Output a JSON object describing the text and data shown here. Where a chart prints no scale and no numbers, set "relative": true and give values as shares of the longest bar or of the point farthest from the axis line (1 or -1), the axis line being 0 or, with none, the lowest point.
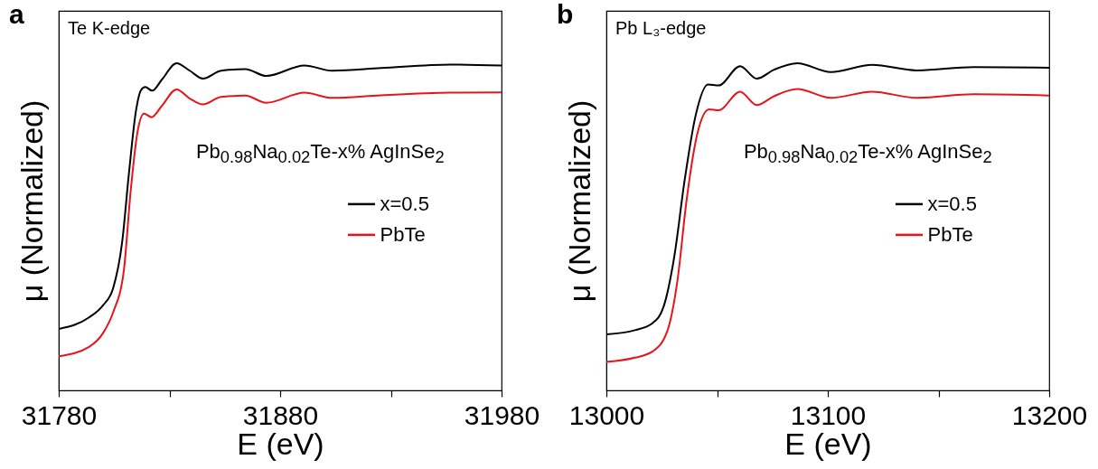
{
  "chart_data": [
    {
      "type": "line",
      "title": "a",
      "annotations": [
        "Te K-edge"
      ],
      "xlabel": "E (eV)",
      "ylabel": "μ (Normalized)",
      "legend_title": "Pb$_{0.98}$Na$_{0.02}$Te-x% AgInSe$_{2}$",
      "legend": "right",
      "relative": true,
      "tick_labels": "x",
      "xlim": [
        31780,
        31980
      ],
      "xticks": [
        31780,
        {
          "value": 31830,
          "label": null
        },
        31880,
        {
          "value": 31930,
          "label": null
        },
        31980
      ],
      "series": [
        {
          "name": "x=0.5",
          "color": "#000000",
          "x": [
            31780,
            31793.7,
            31800,
            31804.6,
            31808.6,
            31811.7,
            31814.9,
            31817.2,
            31819.1,
            31822.2,
            31826.6,
            31833.2,
            31839.2,
            31845.1,
            31853.3,
            31864.3,
            31873.7,
            31891,
            31903.5,
            31925.5,
            31956.9,
            31980
          ],
          "values": [
            0.188,
            0.223,
            0.26,
            0.313,
            0.451,
            0.663,
            0.855,
            0.918,
            0.927,
            0.916,
            0.95,
            1.0,
            0.977,
            0.953,
            0.977,
            0.982,
            0.961,
            0.993,
            0.977,
            0.985,
            0.996,
            0.993
          ]
        },
        {
          "name": "PbTe",
          "color": "#e8141b",
          "x": [
            31780,
            31793.7,
            31800,
            31804.6,
            31809.4,
            31812.5,
            31815.6,
            31818.5,
            31821.9,
            31826.6,
            31833.2,
            31839.2,
            31845.1,
            31853.3,
            31864.3,
            31873.7,
            31891,
            31903.5,
            31925.5,
            31956.9,
            31980
          ],
          "values": [
            0.104,
            0.133,
            0.175,
            0.239,
            0.366,
            0.61,
            0.791,
            0.846,
            0.835,
            0.87,
            0.92,
            0.892,
            0.874,
            0.897,
            0.901,
            0.879,
            0.91,
            0.894,
            0.902,
            0.91,
            0.911
          ]
        }
      ]
    },
    {
      "type": "line",
      "title": "b",
      "annotations": [
        "Pb L₃-edge"
      ],
      "xlabel": "E (eV)",
      "ylabel": "μ (Normalized)",
      "legend_title": "Pb$_{0.98}$Na$_{0.02}$Te-x% AgInSe$_{2}$",
      "legend": "right",
      "relative": true,
      "tick_labels": "x",
      "xlim": [
        13000,
        13200
      ],
      "xticks": [
        13000,
        {
          "value": 13050,
          "label": null
        },
        13100,
        {
          "value": 13150,
          "label": null
        },
        13200
      ],
      "series": [
        {
          "name": "x=0.5",
          "color": "#000000",
          "x": [
            13000,
            13012.9,
            13020.9,
            13025.8,
            13030.6,
            13035.4,
            13040.3,
            13045.9,
            13050.7,
            13060.4,
            13067.9,
            13075.7,
            13086.2,
            13101.4,
            13120,
            13140.1,
            13165.9,
            13200
          ],
          "values": [
            0.171,
            0.184,
            0.206,
            0.255,
            0.406,
            0.645,
            0.84,
            0.935,
            0.932,
            0.991,
            0.953,
            0.98,
            1.0,
            0.973,
            0.995,
            0.978,
            0.988,
            0.986
          ]
        },
        {
          "name": "PbTe",
          "color": "#e8141b",
          "x": [
            13000,
            13012.9,
            13020.9,
            13027.4,
            13032.2,
            13036.2,
            13041.1,
            13046.4,
            13050.7,
            13060.4,
            13067.9,
            13075.7,
            13086.2,
            13101.4,
            13120,
            13140.1,
            13165.9,
            13200
          ],
          "values": [
            0.087,
            0.1,
            0.119,
            0.179,
            0.341,
            0.58,
            0.785,
            0.859,
            0.856,
            0.913,
            0.872,
            0.899,
            0.921,
            0.894,
            0.913,
            0.894,
            0.905,
            0.901
          ]
        }
      ]
    }
  ]
}
